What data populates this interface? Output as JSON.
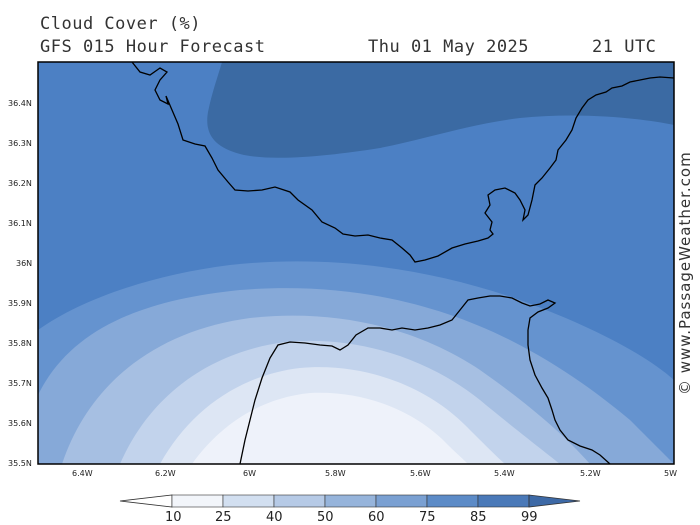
{
  "header": {
    "title": "Cloud Cover (%)",
    "model": "GFS 015 Hour Forecast",
    "date": "Thu 01 May 2025",
    "time": "21 UTC"
  },
  "credit": "© www.PassageWeather.com",
  "axes": {
    "lat_labels": [
      "36.4N",
      "36.3N",
      "36.2N",
      "36.1N",
      "36N",
      "35.9N",
      "35.8N",
      "35.7N",
      "35.6N",
      "35.5N"
    ],
    "lon_labels": [
      "6.4W",
      "6.2W",
      "6W",
      "5.8W",
      "5.6W",
      "5.4W",
      "5.2W",
      "5W"
    ]
  },
  "legend": {
    "values": [
      "10",
      "25",
      "40",
      "50",
      "60",
      "75",
      "85",
      "99"
    ],
    "colors": [
      "#ffffff",
      "#f2f5fa",
      "#d2dff0",
      "#b6cae6",
      "#96b4db",
      "#7aa0d2",
      "#5c8bc7",
      "#4a79b8",
      "#3d69a6"
    ]
  },
  "field_colors": {
    "lvl85": "#4c80c4",
    "lvl99": "#3b6aa3",
    "lvl75": "#6593cf",
    "lvl60": "#86a9d8",
    "lvl50": "#a6bfe2",
    "lvl40": "#c2d3ec",
    "lvl25": "#dde6f4",
    "lvl10": "#eef2fa",
    "coast": "#000000"
  }
}
